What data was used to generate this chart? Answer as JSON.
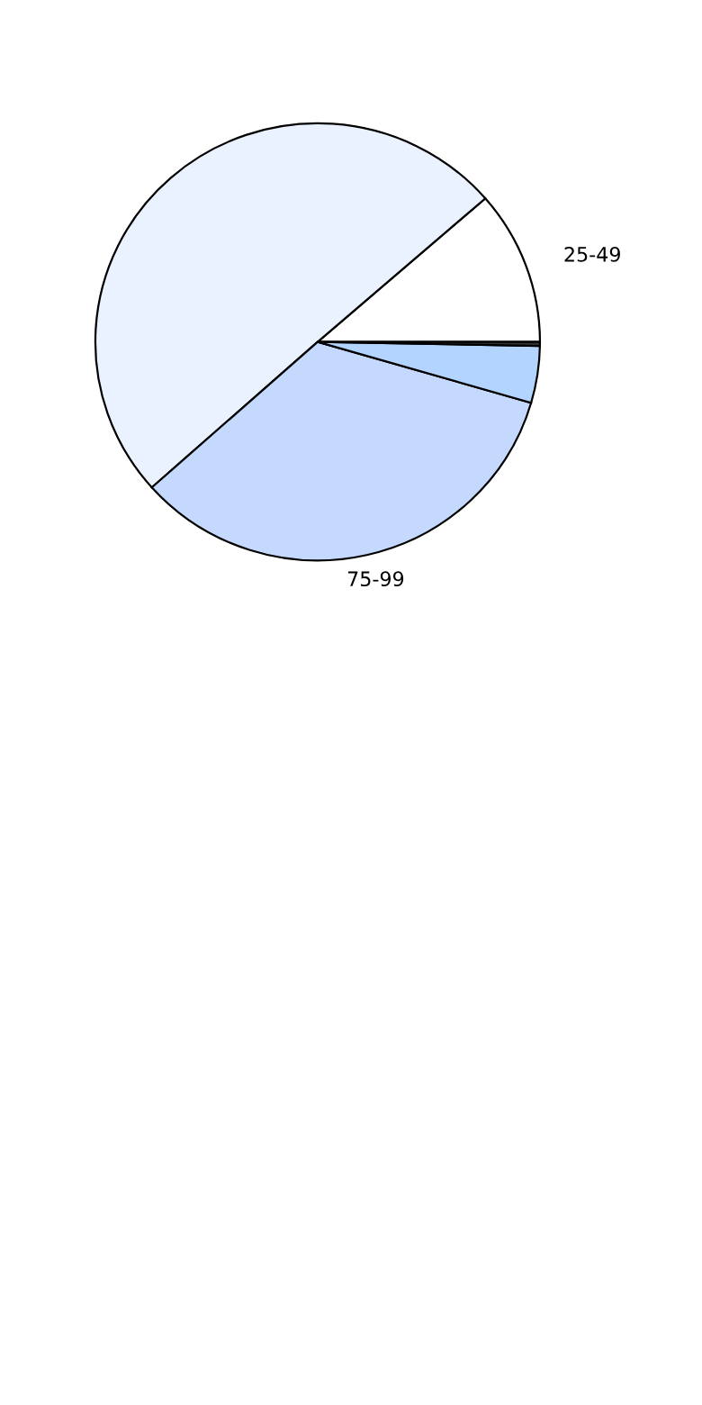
{
  "chart_data": {
    "type": "pie",
    "categories": [
      "25-49",
      null,
      "75-99",
      null,
      null
    ],
    "values": [
      11.4,
      50.2,
      33.9,
      4.2,
      0.3
    ],
    "colors": [
      "#ffffff",
      "#eaf1ff",
      "#c5d9ff",
      "#b3d4ff",
      "#333333"
    ]
  }
}
